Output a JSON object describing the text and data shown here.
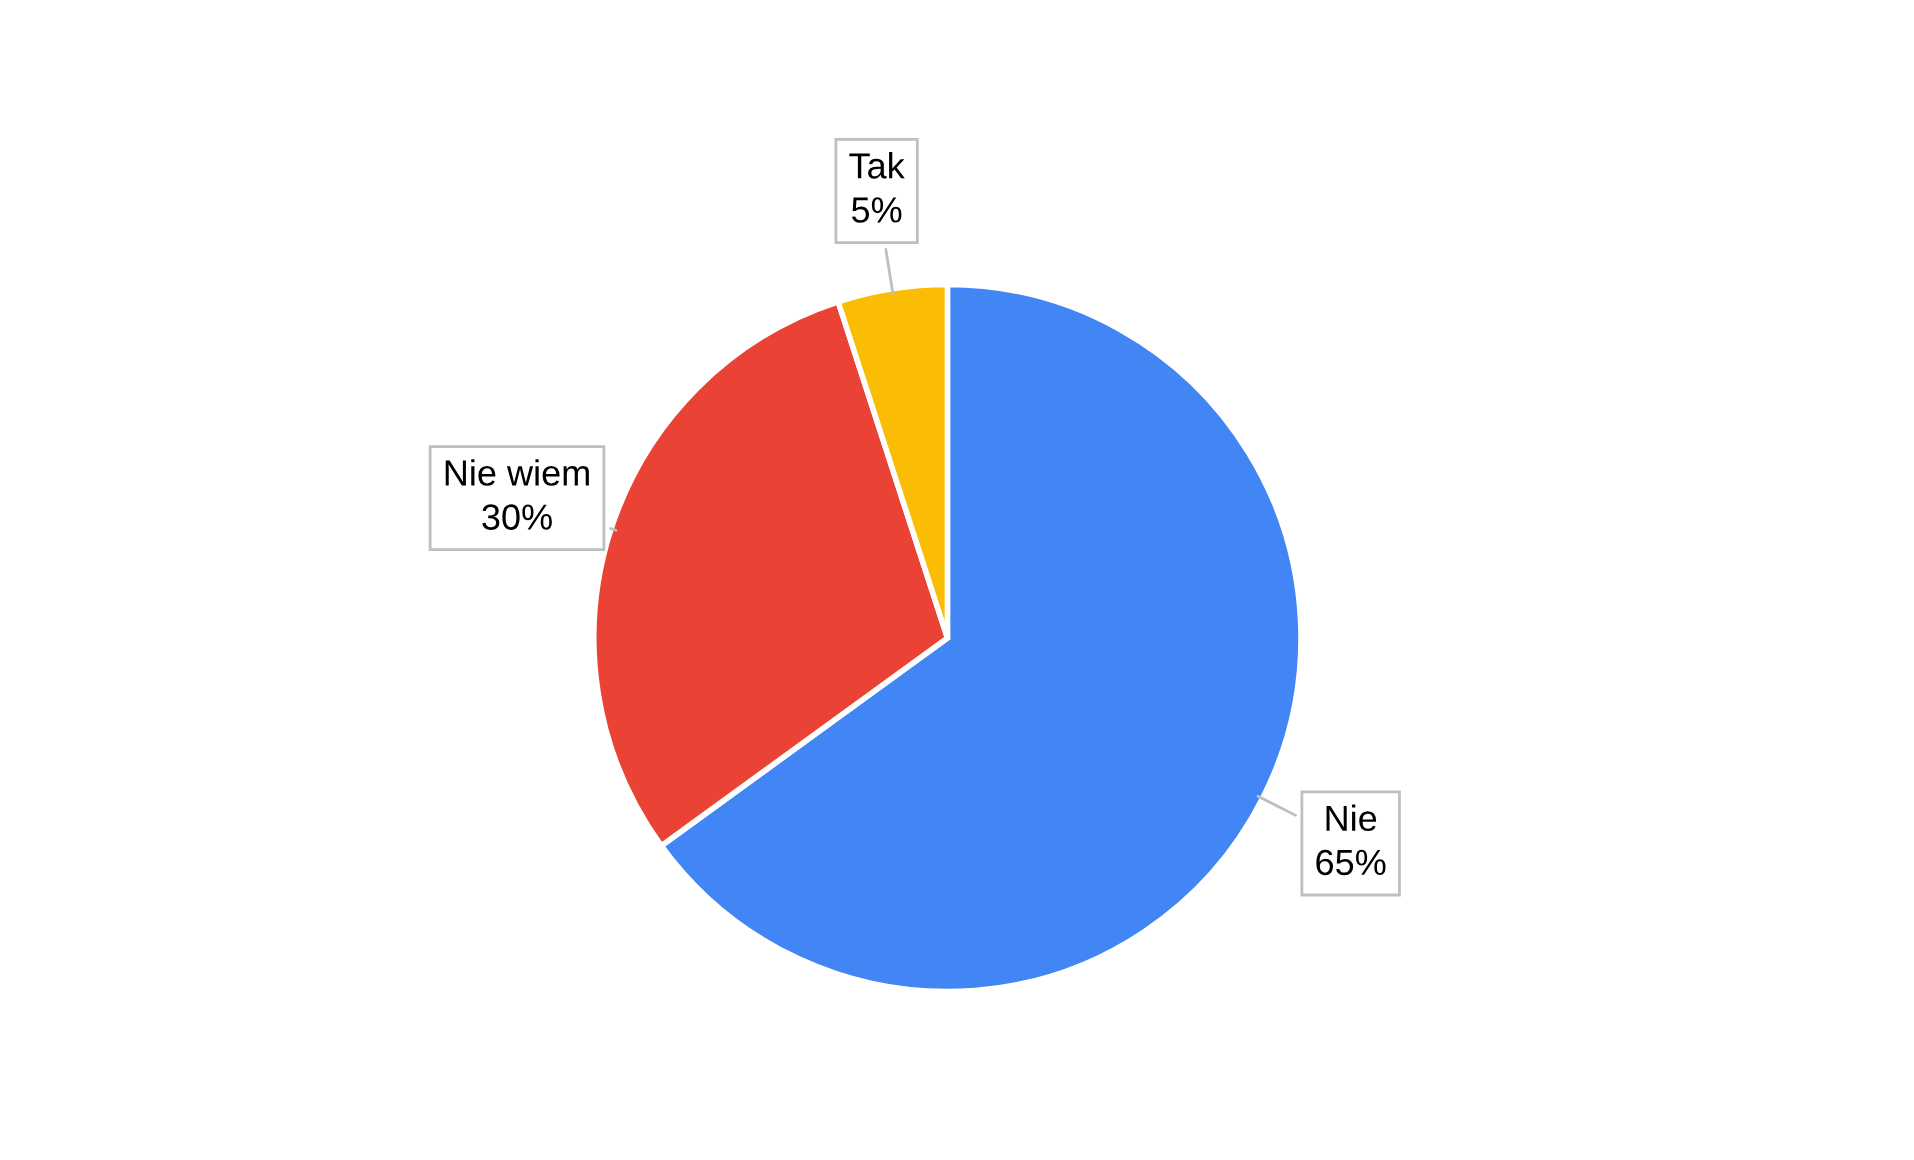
{
  "chart_data": {
    "type": "pie",
    "categories": [
      "Nie",
      "Nie wiem",
      "Tak"
    ],
    "values": [
      65,
      30,
      5
    ],
    "colors": [
      "#4285f4",
      "#ea4335",
      "#fbbc04"
    ],
    "value_labels": [
      "65%",
      "30%",
      "5%"
    ]
  }
}
